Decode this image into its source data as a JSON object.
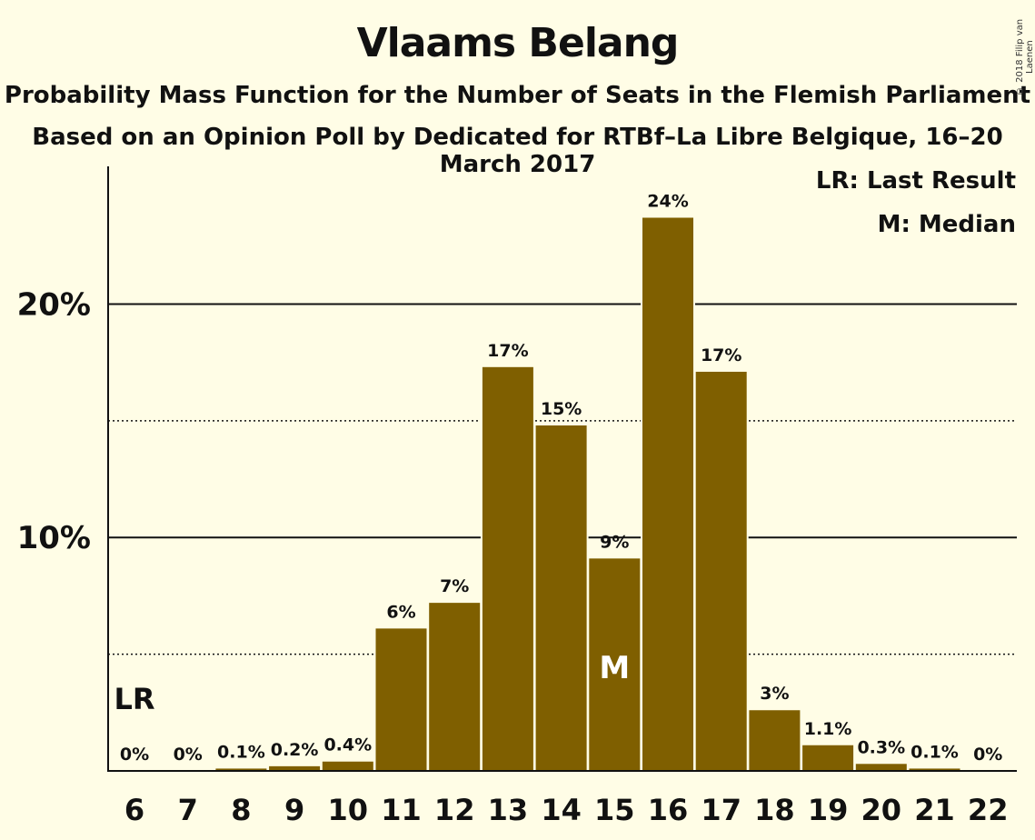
{
  "chart_data": {
    "type": "bar",
    "title": "Vlaams Belang",
    "subtitle": "Probability Mass Function for the Number of Seats in the Flemish Parliament",
    "subtitle2": "Based on an Opinion Poll by Dedicated for RTBf–La Libre Belgique, 16–20 March 2017",
    "copyright": "© 2018 Filip van Laenen",
    "categories": [
      "6",
      "7",
      "8",
      "9",
      "10",
      "11",
      "12",
      "13",
      "14",
      "15",
      "16",
      "17",
      "18",
      "19",
      "20",
      "21",
      "22"
    ],
    "values": [
      0,
      0,
      0.1,
      0.2,
      0.4,
      6.1,
      7.2,
      17.3,
      14.8,
      9.1,
      23.7,
      17.1,
      2.6,
      1.1,
      0.3,
      0.1,
      0
    ],
    "data_labels": [
      "0%",
      "0%",
      "0.1%",
      "0.2%",
      "0.4%",
      "6%",
      "7%",
      "17%",
      "15%",
      "9%",
      "24%",
      "17%",
      "3%",
      "1.1%",
      "0.3%",
      "0.1%",
      "0%"
    ],
    "yticks": [
      {
        "value": 10,
        "label": "10%"
      },
      {
        "value": 20,
        "label": "20%"
      }
    ],
    "minor_grid": [
      5,
      15
    ],
    "ylim": [
      0,
      25.9
    ],
    "last_result": {
      "category": "6",
      "label": "LR"
    },
    "median": {
      "category": "15",
      "label": "M"
    },
    "legend": [
      "LR: Last Result",
      "M: Median"
    ],
    "legend_position": "top-right",
    "bar_color": "#7f5f00"
  }
}
